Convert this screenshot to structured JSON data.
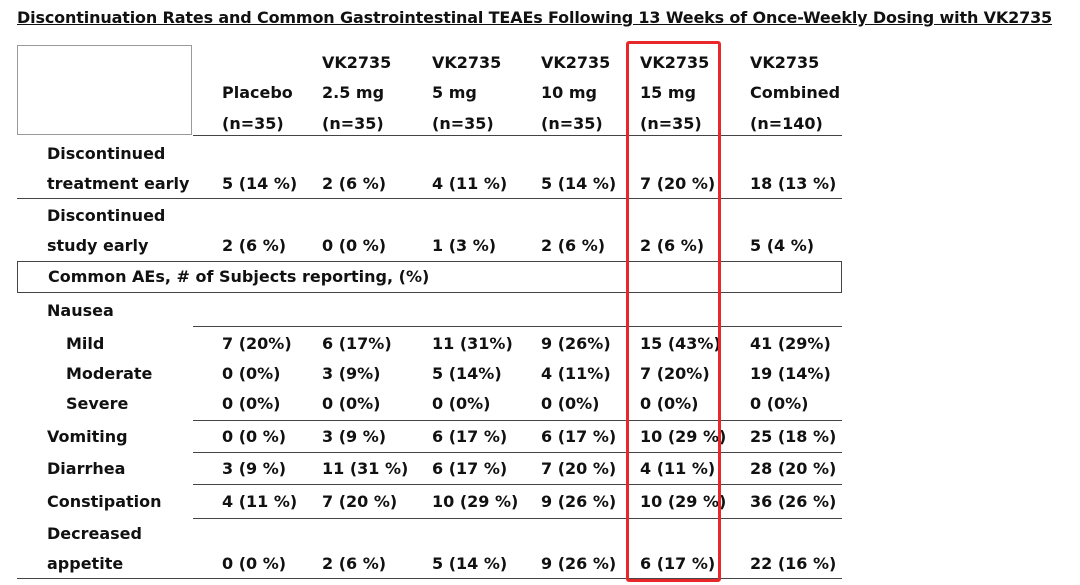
{
  "title": "Discontinuation Rates and Common Gastrointestinal TEAEs Following 13 Weeks of Once-Weekly Dosing with VK2735",
  "columns": [
    {
      "line1": "",
      "line2": "Placebo",
      "line3": "(n=35)"
    },
    {
      "line1": "VK2735",
      "line2": "2.5 mg",
      "line3": "(n=35)"
    },
    {
      "line1": "VK2735",
      "line2": "5 mg",
      "line3": "(n=35)"
    },
    {
      "line1": "VK2735",
      "line2": "10 mg",
      "line3": "(n=35)"
    },
    {
      "line1": "VK2735",
      "line2": "15 mg",
      "line3": "(n=35)"
    },
    {
      "line1": "VK2735",
      "line2": "Combined",
      "line3": "(n=140)"
    }
  ],
  "section_header": "Common AEs, # of Subjects reporting, (%)",
  "rows": [
    {
      "label_line1": "Discontinued",
      "label_line2": "treatment early",
      "values": [
        "5 (14 %)",
        "2 (6 %)",
        "4 (11 %)",
        "5 (14 %)",
        "7 (20 %)",
        "18 (13 %)"
      ]
    },
    {
      "label_line1": "Discontinued",
      "label_line2": "study early",
      "values": [
        "2 (6 %)",
        "0 (0 %)",
        "1 (3 %)",
        "2 (6 %)",
        "2 (6 %)",
        "5 (4 %)"
      ]
    },
    {
      "label": "Nausea"
    },
    {
      "label": "Mild",
      "values": [
        "7 (20%)",
        "6 (17%)",
        "11 (31%)",
        "9 (26%)",
        "15 (43%)",
        "41 (29%)"
      ]
    },
    {
      "label": "Moderate",
      "values": [
        "0 (0%)",
        "3 (9%)",
        "5 (14%)",
        "4 (11%)",
        "7 (20%)",
        "19 (14%)"
      ]
    },
    {
      "label": "Severe",
      "values": [
        "0 (0%)",
        "0 (0%)",
        "0 (0%)",
        "0 (0%)",
        "0 (0%)",
        "0 (0%)"
      ]
    },
    {
      "label": "Vomiting",
      "values": [
        "0 (0 %)",
        "3 (9 %)",
        "6 (17 %)",
        "6 (17 %)",
        "10 (29 %)",
        "25 (18 %)"
      ]
    },
    {
      "label": "Diarrhea",
      "values": [
        "3 (9 %)",
        "11 (31 %)",
        "6 (17 %)",
        "7 (20 %)",
        "4 (11 %)",
        "28 (20 %)"
      ]
    },
    {
      "label": "Constipation",
      "values": [
        "4 (11 %)",
        "7 (20 %)",
        "10 (29 %)",
        "9 (26 %)",
        "10 (29 %)",
        "36 (26 %)"
      ]
    },
    {
      "label_line1": "Decreased",
      "label_line2": "appetite",
      "values": [
        "0 (0 %)",
        "2 (6 %)",
        "5 (14 %)",
        "9 (26 %)",
        "6 (17 %)",
        "22 (16 %)"
      ]
    }
  ],
  "highlight_color": "#e8272b"
}
